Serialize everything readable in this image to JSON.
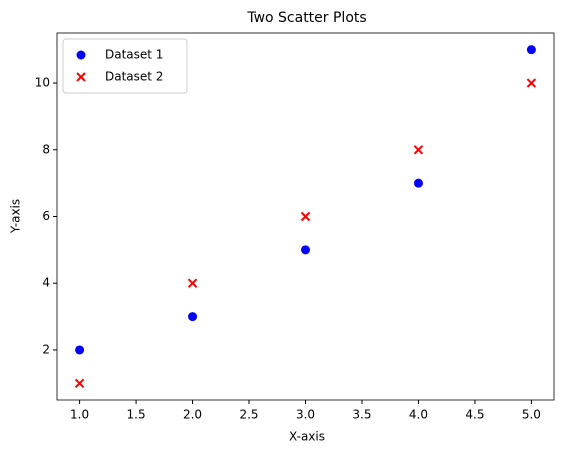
{
  "chart_data": {
    "type": "scatter",
    "title": "Two Scatter Plots",
    "x_label": "X-axis",
    "y_label": "Y-axis",
    "xlim": [
      0.8,
      5.2
    ],
    "ylim": [
      0.5,
      11.5
    ],
    "xticks": [
      {
        "value": 1,
        "label": "1.0"
      },
      {
        "value": 1.5,
        "label": "1.5"
      },
      {
        "value": 2,
        "label": "2.0"
      },
      {
        "value": 2.5,
        "label": "2.5"
      },
      {
        "value": 3,
        "label": "3.0"
      },
      {
        "value": 3.5,
        "label": "3.5"
      },
      {
        "value": 4,
        "label": "4.0"
      },
      {
        "value": 4.5,
        "label": "4.5"
      },
      {
        "value": 5,
        "label": "5.0"
      }
    ],
    "yticks": [
      2,
      4,
      6,
      8,
      10
    ],
    "legend": "upper left",
    "series": [
      {
        "name": "Dataset 1",
        "color": "#0000ff",
        "marker": "circle",
        "x": [
          1,
          2,
          3,
          4,
          5
        ],
        "values": [
          2,
          3,
          5,
          7,
          11
        ]
      },
      {
        "name": "Dataset 2",
        "color": "#ff0000",
        "marker": "x",
        "x": [
          1,
          2,
          3,
          4,
          5
        ],
        "values": [
          1,
          4,
          6,
          8,
          10
        ]
      }
    ]
  }
}
